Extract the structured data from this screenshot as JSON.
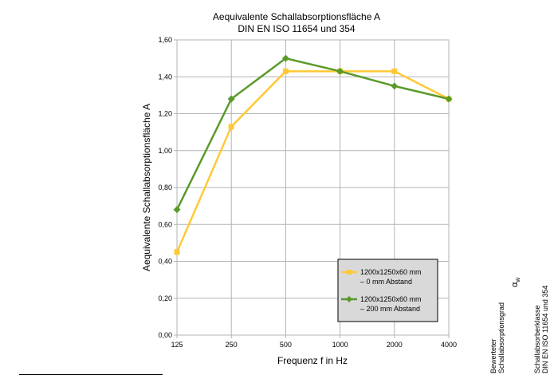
{
  "chart_data": {
    "type": "line",
    "title": "Aequivalente Schallabsorptionsfläche A",
    "subtitle": "DIN EN ISO 11654 und 354",
    "xlabel": "Frequenz f in Hz",
    "ylabel": "Aequivalente Schallabsorptionsfläche A",
    "categories": [
      "125",
      "250",
      "500",
      "1000",
      "2000",
      "4000"
    ],
    "ylim": [
      0,
      1.6
    ],
    "yticks": [
      "0,00",
      "0,20",
      "0,40",
      "0,60",
      "0,80",
      "1,00",
      "1,20",
      "1,40",
      "1,60"
    ],
    "grid": true,
    "legend_position": "bottom-right",
    "series": [
      {
        "name_line1": "1200x1250x60 mm",
        "name_line2": "– 0 mm Abstand",
        "color": "#ffc935",
        "marker": "square",
        "values": [
          0.45,
          1.13,
          1.43,
          1.43,
          1.43,
          1.28
        ]
      },
      {
        "name_line1": "1200x1250x60 mm",
        "name_line2": "– 200 mm Abstand",
        "color": "#5a9a2a",
        "marker": "diamond",
        "values": [
          0.68,
          1.28,
          1.5,
          1.43,
          1.35,
          1.28
        ]
      }
    ]
  },
  "side_labels": {
    "rating_line1": "Bewerteter",
    "rating_line2": "Schallabsorptionsgrad",
    "alpha_symbol": "α",
    "alpha_sub": "w",
    "class_line1": "Schallabsorberklasse",
    "class_line2": "DIN EN ISO 11654 und 354"
  }
}
